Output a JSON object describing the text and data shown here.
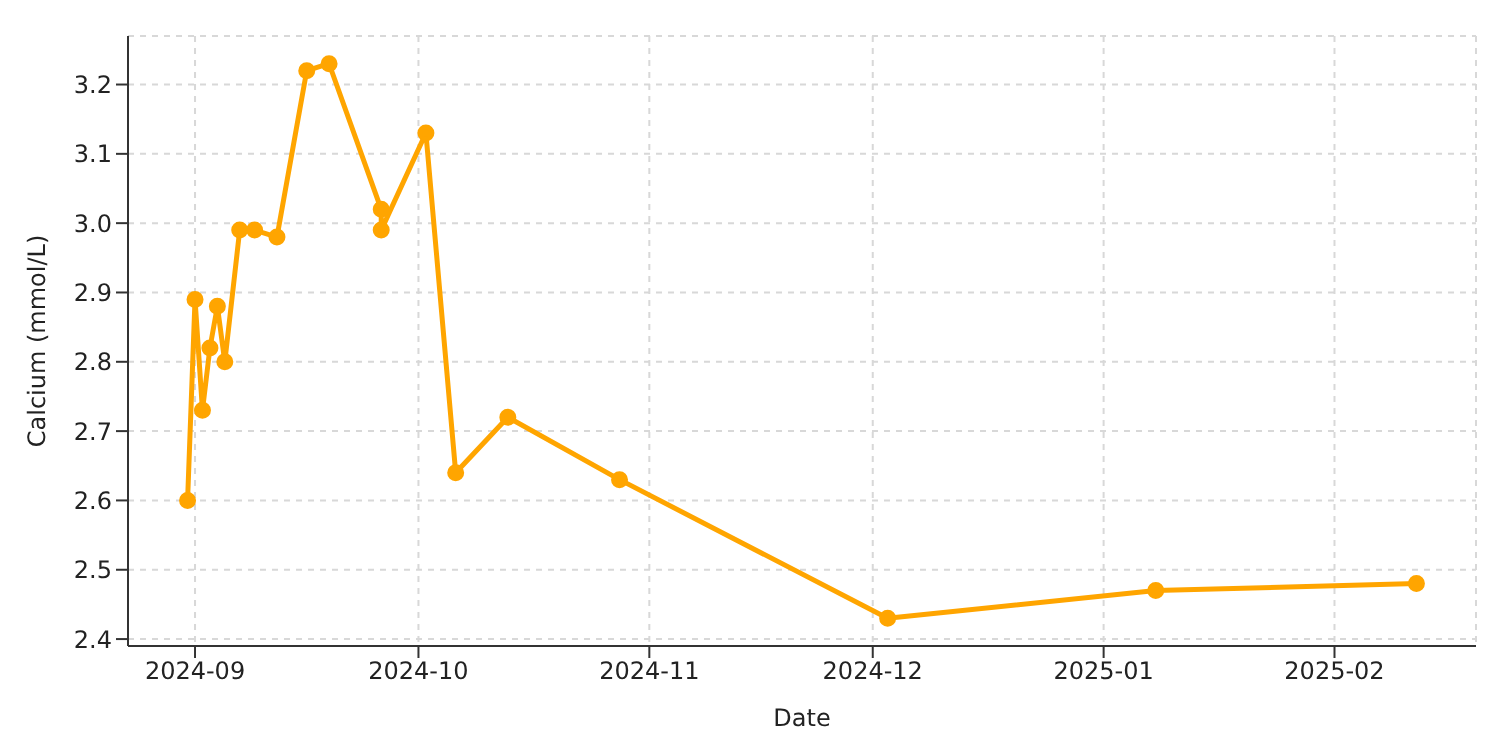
{
  "chart_data": {
    "type": "line",
    "xlabel": "Date",
    "ylabel": "Calcium (mmol/L)",
    "x": [
      "2024-08-31",
      "2024-09-01",
      "2024-09-02",
      "2024-09-03",
      "2024-09-04",
      "2024-09-05",
      "2024-09-07",
      "2024-09-09",
      "2024-09-12",
      "2024-09-16",
      "2024-09-19",
      "2024-09-26",
      "2024-09-26",
      "2024-10-02",
      "2024-10-06",
      "2024-10-13",
      "2024-10-28",
      "2024-12-03",
      "2025-01-08",
      "2025-02-12"
    ],
    "series": [
      {
        "color": "#ffa500",
        "values": [
          2.6,
          2.89,
          2.73,
          2.82,
          2.88,
          2.8,
          2.99,
          2.99,
          2.98,
          3.22,
          3.23,
          3.02,
          2.99,
          3.13,
          2.64,
          2.72,
          2.63,
          2.43,
          2.47,
          2.48
        ]
      }
    ],
    "xlim": [
      "2024-08-23",
      "2025-02-20"
    ],
    "xticks": [
      "2024-09",
      "2024-10",
      "2024-11",
      "2024-12",
      "2025-01",
      "2025-02"
    ],
    "ylim": [
      2.39,
      3.27
    ],
    "yticks": [
      2.4,
      2.5,
      2.6,
      2.7,
      2.8,
      2.9,
      {
        "value": 3,
        "label": "3.0"
      },
      3.1,
      3.2
    ],
    "grid": true,
    "marker": "circle",
    "line_style": "solid",
    "legend": false
  }
}
